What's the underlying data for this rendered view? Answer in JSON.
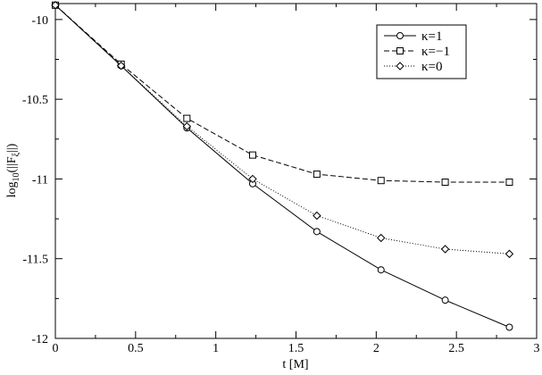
{
  "chart_data": {
    "type": "line",
    "title": "",
    "xlabel": "t [M]",
    "ylabel": "log10(||Fξ||)",
    "ylabel_parts": {
      "prefix": "log",
      "sub": "10",
      "body": "(||F",
      "body_sub": "ξ",
      "suffix": "||)"
    },
    "xlim": [
      0,
      3
    ],
    "ylim": [
      -12,
      -9.9
    ],
    "xticks": [
      0,
      0.5,
      1,
      1.5,
      2,
      2.5,
      3
    ],
    "xtick_labels": [
      "0",
      "0.5",
      "1",
      "1.5",
      "2",
      "2.5",
      "3"
    ],
    "yticks": [
      -10,
      -10.5,
      -11,
      -11.5,
      -12
    ],
    "ytick_labels": [
      "-10",
      "-10.5",
      "-11",
      "-11.5",
      "-12"
    ],
    "grid": false,
    "legend_position": "top-right",
    "x": [
      0.0,
      0.41,
      0.82,
      1.23,
      1.63,
      2.03,
      2.43,
      2.83
    ],
    "series": [
      {
        "name": "κ=1",
        "line_style": "solid",
        "marker": "circle",
        "color": "#000000",
        "values": [
          -9.91,
          -10.29,
          -10.68,
          -11.03,
          -11.33,
          -11.57,
          -11.76,
          -11.93
        ]
      },
      {
        "name": "κ=−1",
        "line_style": "dashed",
        "marker": "square",
        "color": "#000000",
        "values": [
          -9.91,
          -10.28,
          -10.62,
          -10.85,
          -10.97,
          -11.01,
          -11.02,
          -11.02
        ]
      },
      {
        "name": "κ=0",
        "line_style": "dotted",
        "marker": "diamond",
        "color": "#000000",
        "values": [
          -9.91,
          -10.29,
          -10.67,
          -11.0,
          -11.23,
          -11.37,
          -11.44,
          -11.47
        ]
      }
    ]
  }
}
